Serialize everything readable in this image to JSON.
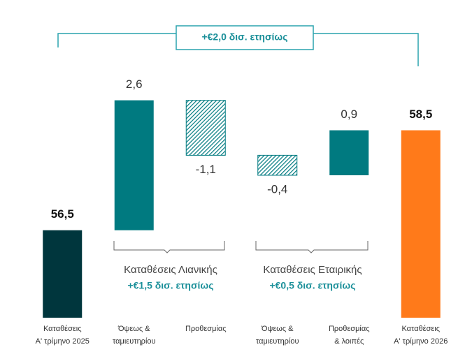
{
  "chart_data": {
    "type": "waterfall",
    "categories": [
      [
        "Καταθέσεις",
        "Α' τρίμηνο 2025"
      ],
      [
        "Όψεως &",
        "ταμιευτηρίου"
      ],
      [
        "Προθεσμίας"
      ],
      [
        "Όψεως &",
        "ταμιευτηρίου"
      ],
      [
        "Προθεσμίας",
        "& λοιπές"
      ],
      [
        "Καταθέσεις",
        "Α' τρίμηνο 2026"
      ]
    ],
    "values": [
      56.5,
      2.6,
      -1.1,
      -0.4,
      0.9,
      58.5
    ],
    "value_labels": [
      "56,5",
      "2,6",
      "-1,1",
      "-0,4",
      "0,9",
      "58,5"
    ],
    "colors": [
      "#00363d",
      "#007a80",
      "#007a80",
      "#007a80",
      "#007a80",
      "#ff7a1a"
    ],
    "ylim": [
      54.75,
      59.5
    ],
    "annotation": "+€2,0 δισ. ετησίως",
    "groups": [
      {
        "name": "Καταθέσεις Λιανικής",
        "change": "+€1,5 δισ. ετησίως"
      },
      {
        "name": "Καταθέσεις Εταιρικής",
        "change": "+€0,5 δισ. ετησίως"
      }
    ]
  }
}
